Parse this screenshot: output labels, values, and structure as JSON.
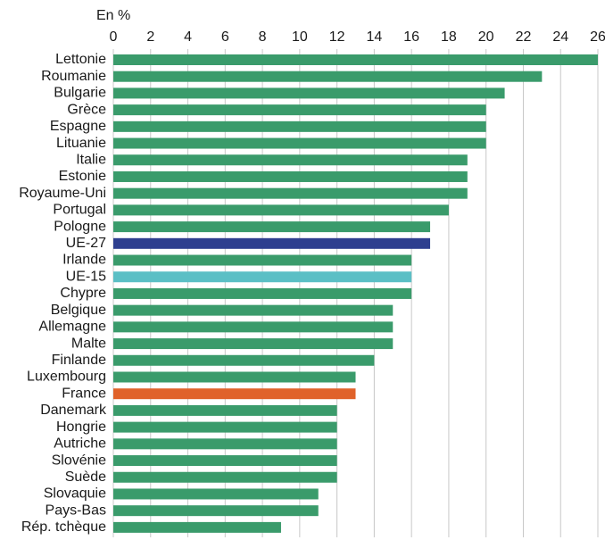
{
  "chart_data": {
    "type": "bar",
    "orientation": "horizontal",
    "axis_label": "En %",
    "categories": [
      "Lettonie",
      "Roumanie",
      "Bulgarie",
      "Grèce",
      "Espagne",
      "Lituanie",
      "Italie",
      "Estonie",
      "Royaume-Uni",
      "Portugal",
      "Pologne",
      "UE-27",
      "Irlande",
      "UE-15",
      "Chypre",
      "Belgique",
      "Allemagne",
      "Malte",
      "Finlande",
      "Luxembourg",
      "France",
      "Danemark",
      "Hongrie",
      "Autriche",
      "Slovénie",
      "Suède",
      "Slovaquie",
      "Pays-Bas",
      "Rép. tchèque"
    ],
    "values": [
      26,
      23,
      21,
      20,
      20,
      20,
      19,
      19,
      19,
      18,
      17,
      17,
      16,
      16,
      16,
      15,
      15,
      15,
      14,
      13,
      13,
      12,
      12,
      12,
      12,
      12,
      11,
      11,
      9
    ],
    "colors": [
      "#3a9b6b",
      "#3a9b6b",
      "#3a9b6b",
      "#3a9b6b",
      "#3a9b6b",
      "#3a9b6b",
      "#3a9b6b",
      "#3a9b6b",
      "#3a9b6b",
      "#3a9b6b",
      "#3a9b6b",
      "#2e3f8f",
      "#3a9b6b",
      "#5bbfc5",
      "#3a9b6b",
      "#3a9b6b",
      "#3a9b6b",
      "#3a9b6b",
      "#3a9b6b",
      "#3a9b6b",
      "#e0622a",
      "#3a9b6b",
      "#3a9b6b",
      "#3a9b6b",
      "#3a9b6b",
      "#3a9b6b",
      "#3a9b6b",
      "#3a9b6b",
      "#3a9b6b"
    ],
    "xlim": [
      0,
      26
    ],
    "xticks": [
      0,
      2,
      4,
      6,
      8,
      10,
      12,
      14,
      16,
      18,
      20,
      22,
      24,
      26
    ],
    "grid": true
  }
}
